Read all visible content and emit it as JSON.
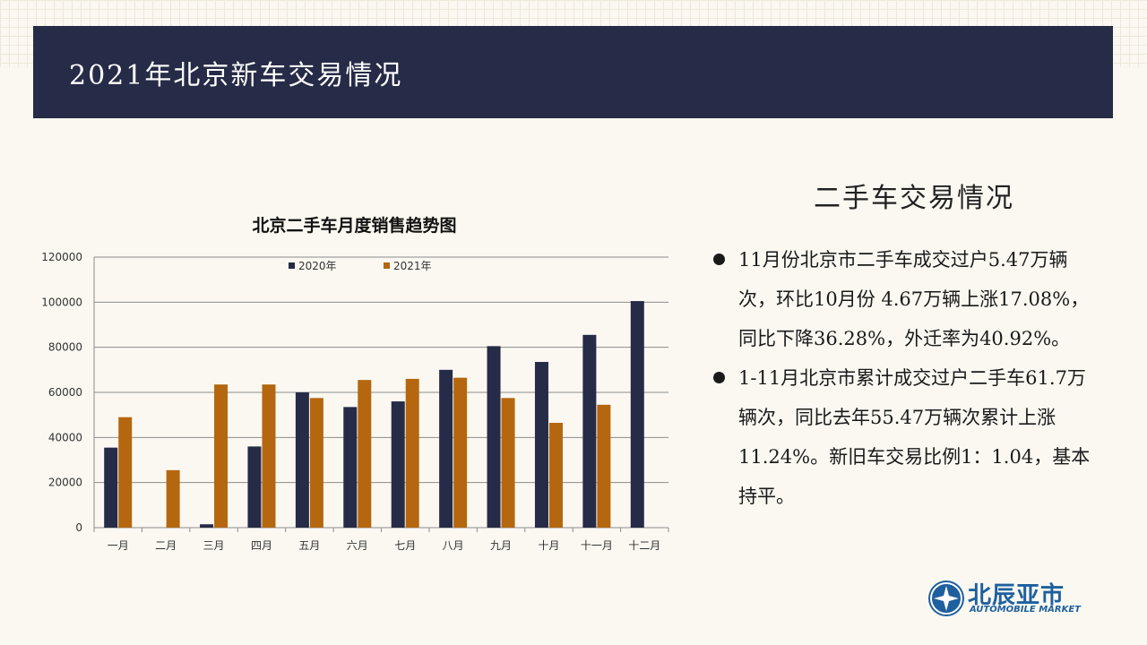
{
  "page": {
    "title": "2021年北京新车交易情况"
  },
  "section": {
    "title": "二手车交易情况",
    "bullets": [
      "11月份北京市二手车成交过户5.47万辆次，环比10月份 4.67万辆上涨17.08%，同比下降36.28%，外迁率为40.92%。",
      "1-11月北京市累计成交过户二手车61.7万辆次，同比去年55.47万辆次累计上涨11.24%。新旧车交易比例1：1.04，基本持平。"
    ]
  },
  "logo": {
    "name_cn": "北辰亚市",
    "name_en": "AUTOMOBILE MARKET"
  },
  "colors": {
    "series_2020": "#262b47",
    "series_2021": "#b5670f",
    "header": "#262b47"
  },
  "chart_data": {
    "type": "bar",
    "title": "北京二手车月度销售趋势图",
    "categories": [
      "一月",
      "二月",
      "三月",
      "四月",
      "五月",
      "六月",
      "七月",
      "八月",
      "九月",
      "十月",
      "十一月",
      "十二月"
    ],
    "series": [
      {
        "name": "2020年",
        "values": [
          35500,
          0,
          1500,
          36000,
          60000,
          53500,
          56000,
          70000,
          80500,
          73500,
          85500,
          100500
        ]
      },
      {
        "name": "2021年",
        "values": [
          49000,
          25500,
          63500,
          63500,
          57500,
          65500,
          66000,
          66500,
          57500,
          46500,
          54500,
          null
        ]
      }
    ],
    "ylim": [
      0,
      120000
    ],
    "yticks": [
      0,
      20000,
      40000,
      60000,
      80000,
      100000,
      120000
    ],
    "xlabel": "",
    "ylabel": "",
    "legend_position": "top",
    "grid": true
  }
}
